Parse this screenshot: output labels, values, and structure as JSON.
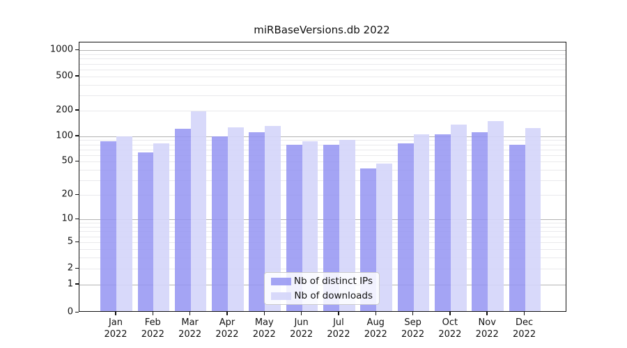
{
  "title": "miRBaseVersions.db 2022",
  "x_axis": {
    "months": [
      "Jan",
      "Feb",
      "Mar",
      "Apr",
      "May",
      "Jun",
      "Jul",
      "Aug",
      "Sep",
      "Oct",
      "Nov",
      "Dec"
    ],
    "year": "2022"
  },
  "y_axis": {
    "tick_values": [
      0,
      1,
      2,
      5,
      10,
      20,
      50,
      100,
      200,
      500,
      1000
    ]
  },
  "legend": {
    "items": [
      {
        "label": "Nb of distinct IPs",
        "color": "#a4a4f3"
      },
      {
        "label": "Nb of downloads",
        "color": "#d8d9f9"
      }
    ]
  },
  "chart_data": {
    "type": "bar",
    "title": "miRBaseVersions.db 2022",
    "categories": [
      "Jan 2022",
      "Feb 2022",
      "Mar 2022",
      "Apr 2022",
      "May 2022",
      "Jun 2022",
      "Jul 2022",
      "Aug 2022",
      "Sep 2022",
      "Oct 2022",
      "Nov 2022",
      "Dec 2022"
    ],
    "series": [
      {
        "name": "Nb of distinct IPs",
        "color": "#a4a4f3",
        "values": [
          87,
          65,
          122,
          100,
          111,
          79,
          79,
          42,
          83,
          106,
          111,
          79
        ]
      },
      {
        "name": "Nb of downloads",
        "color": "#d8d9f9",
        "values": [
          100,
          82,
          197,
          127,
          131,
          87,
          91,
          48,
          105,
          138,
          149,
          125
        ]
      }
    ],
    "xlabel": "",
    "ylabel": "",
    "yscale": "log1p",
    "y_ticks": [
      0,
      1,
      2,
      5,
      10,
      20,
      50,
      100,
      200,
      500,
      1000
    ],
    "ylim": [
      0,
      1240
    ],
    "grid": "major-and-minor-horizontal",
    "legend_position": "lower center"
  }
}
